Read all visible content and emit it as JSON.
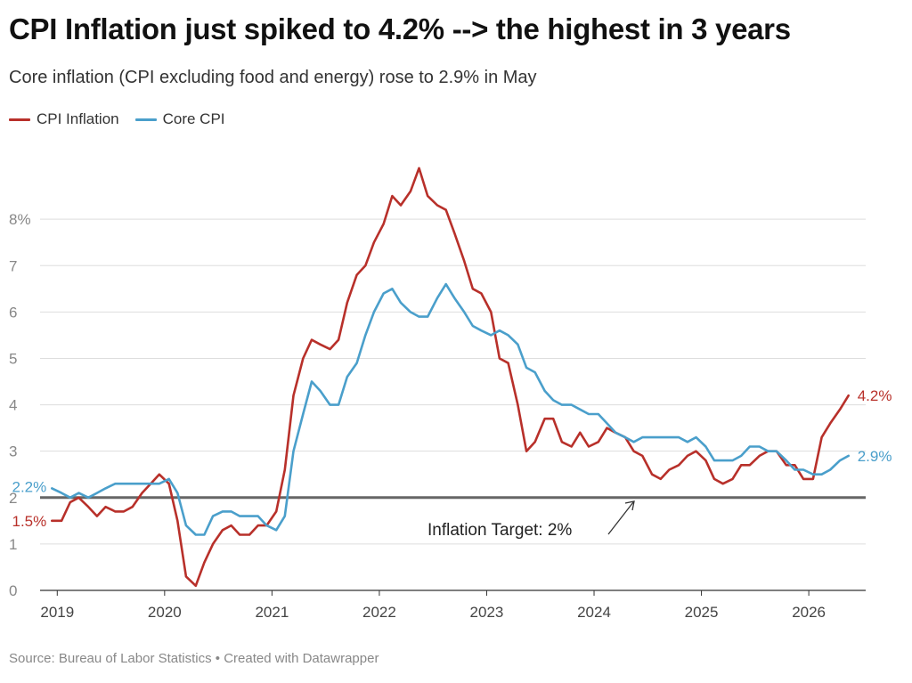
{
  "title": "CPI Inflation just spiked to 4.2% --> the highest in 3 years",
  "subtitle": "Core inflation (CPI excluding food and energy) rose to 2.9% in May",
  "footer": "Source: Bureau of Labor Statistics • Created with Datawrapper",
  "colors": {
    "cpi": "#b8302a",
    "core": "#4a9fcb",
    "target": "#666666",
    "grid": "#dddddd"
  },
  "legend": [
    {
      "label": "CPI Inflation",
      "color": "#b8302a"
    },
    {
      "label": "Core CPI",
      "color": "#4a9fcb"
    }
  ],
  "chart_data": {
    "type": "line",
    "ylim": [
      0,
      9.5
    ],
    "xlim": [
      2018.84,
      2026.53
    ],
    "y_ticks": [
      0,
      1,
      2,
      3,
      4,
      5,
      6,
      7,
      8
    ],
    "y_tick_labels": [
      "0",
      "1",
      "2",
      "3",
      "4",
      "5",
      "6",
      "7",
      "8%"
    ],
    "x_ticks": [
      2019,
      2020,
      2021,
      2022,
      2023,
      2024,
      2025,
      2026
    ],
    "x_tick_labels": [
      "2019",
      "2020",
      "2021",
      "2022",
      "2023",
      "2024",
      "2025",
      "2026"
    ],
    "grid": "horizontal",
    "legend_placement": "top-left",
    "target_line": {
      "value": 2,
      "label": "Inflation Target: 2%"
    },
    "series": [
      {
        "name": "CPI Inflation",
        "color": "#b8302a",
        "start_label": "1.5%",
        "end_label": "4.2%",
        "x": [
          2018.95,
          2019.04,
          2019.12,
          2019.2,
          2019.29,
          2019.37,
          2019.45,
          2019.54,
          2019.62,
          2019.7,
          2019.79,
          2019.87,
          2019.95,
          2020.04,
          2020.12,
          2020.2,
          2020.29,
          2020.37,
          2020.45,
          2020.54,
          2020.62,
          2020.7,
          2020.79,
          2020.87,
          2020.95,
          2021.04,
          2021.12,
          2021.2,
          2021.29,
          2021.37,
          2021.45,
          2021.54,
          2021.62,
          2021.7,
          2021.79,
          2021.87,
          2021.95,
          2022.04,
          2022.12,
          2022.2,
          2022.29,
          2022.37,
          2022.45,
          2022.54,
          2022.62,
          2022.7,
          2022.79,
          2022.87,
          2022.95,
          2023.04,
          2023.12,
          2023.2,
          2023.29,
          2023.37,
          2023.45,
          2023.54,
          2023.62,
          2023.7,
          2023.79,
          2023.87,
          2023.95,
          2024.04,
          2024.12,
          2024.2,
          2024.29,
          2024.37,
          2024.45,
          2024.54,
          2024.62,
          2024.7,
          2024.79,
          2024.87,
          2024.95,
          2025.04,
          2025.12,
          2025.2,
          2025.29,
          2025.37,
          2025.45,
          2025.54,
          2025.62,
          2025.7,
          2025.79,
          2025.87,
          2025.95,
          2026.04,
          2026.12,
          2026.2,
          2026.29,
          2026.37
        ],
        "values": [
          1.5,
          1.5,
          1.9,
          2.0,
          1.8,
          1.6,
          1.8,
          1.7,
          1.7,
          1.8,
          2.1,
          2.3,
          2.5,
          2.3,
          1.5,
          0.3,
          0.1,
          0.6,
          1.0,
          1.3,
          1.4,
          1.2,
          1.2,
          1.4,
          1.4,
          1.7,
          2.6,
          4.2,
          5.0,
          5.4,
          5.3,
          5.2,
          5.4,
          6.2,
          6.8,
          7.0,
          7.5,
          7.9,
          8.5,
          8.3,
          8.6,
          9.1,
          8.5,
          8.3,
          8.2,
          7.7,
          7.1,
          6.5,
          6.4,
          6.0,
          5.0,
          4.9,
          4.0,
          3.0,
          3.2,
          3.7,
          3.7,
          3.2,
          3.1,
          3.4,
          3.1,
          3.2,
          3.5,
          3.4,
          3.3,
          3.0,
          2.9,
          2.5,
          2.4,
          2.6,
          2.7,
          2.9,
          3.0,
          2.8,
          2.4,
          2.3,
          2.4,
          2.7,
          2.7,
          2.9,
          3.0,
          3.0,
          2.7,
          2.7,
          2.4,
          2.4,
          3.3,
          3.6,
          3.9,
          4.2
        ]
      },
      {
        "name": "Core CPI",
        "color": "#4a9fcb",
        "start_label": "2.2%",
        "end_label": "2.9%",
        "x": [
          2018.95,
          2019.04,
          2019.12,
          2019.2,
          2019.29,
          2019.37,
          2019.45,
          2019.54,
          2019.62,
          2019.7,
          2019.79,
          2019.87,
          2019.95,
          2020.04,
          2020.12,
          2020.2,
          2020.29,
          2020.37,
          2020.45,
          2020.54,
          2020.62,
          2020.7,
          2020.79,
          2020.87,
          2020.95,
          2021.04,
          2021.12,
          2021.2,
          2021.29,
          2021.37,
          2021.45,
          2021.54,
          2021.62,
          2021.7,
          2021.79,
          2021.87,
          2021.95,
          2022.04,
          2022.12,
          2022.2,
          2022.29,
          2022.37,
          2022.45,
          2022.54,
          2022.62,
          2022.7,
          2022.79,
          2022.87,
          2022.95,
          2023.04,
          2023.12,
          2023.2,
          2023.29,
          2023.37,
          2023.45,
          2023.54,
          2023.62,
          2023.7,
          2023.79,
          2023.87,
          2023.95,
          2024.04,
          2024.12,
          2024.2,
          2024.29,
          2024.37,
          2024.45,
          2024.54,
          2024.62,
          2024.7,
          2024.79,
          2024.87,
          2024.95,
          2025.04,
          2025.12,
          2025.2,
          2025.29,
          2025.37,
          2025.45,
          2025.54,
          2025.62,
          2025.7,
          2025.79,
          2025.87,
          2025.95,
          2026.04,
          2026.12,
          2026.2,
          2026.29,
          2026.37
        ],
        "values": [
          2.2,
          2.1,
          2.0,
          2.1,
          2.0,
          2.1,
          2.2,
          2.3,
          2.3,
          2.3,
          2.3,
          2.3,
          2.3,
          2.4,
          2.1,
          1.4,
          1.2,
          1.2,
          1.6,
          1.7,
          1.7,
          1.6,
          1.6,
          1.6,
          1.4,
          1.3,
          1.6,
          3.0,
          3.8,
          4.5,
          4.3,
          4.0,
          4.0,
          4.6,
          4.9,
          5.5,
          6.0,
          6.4,
          6.5,
          6.2,
          6.0,
          5.9,
          5.9,
          6.3,
          6.6,
          6.3,
          6.0,
          5.7,
          5.6,
          5.5,
          5.6,
          5.5,
          5.3,
          4.8,
          4.7,
          4.3,
          4.1,
          4.0,
          4.0,
          3.9,
          3.8,
          3.8,
          3.6,
          3.4,
          3.3,
          3.2,
          3.3,
          3.3,
          3.3,
          3.3,
          3.3,
          3.2,
          3.3,
          3.1,
          2.8,
          2.8,
          2.8,
          2.9,
          3.1,
          3.1,
          3.0,
          3.0,
          2.8,
          2.6,
          2.6,
          2.5,
          2.5,
          2.6,
          2.8,
          2.9
        ]
      }
    ]
  }
}
